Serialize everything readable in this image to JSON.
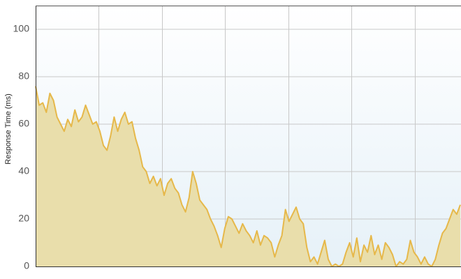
{
  "chart_data": {
    "type": "area",
    "y_label": "Response Time (ms)",
    "color": "#e6b84a",
    "fill": "#e9deab",
    "ylim": [
      0,
      110
    ],
    "yticks": [
      0,
      20,
      40,
      60,
      80,
      100
    ],
    "grid": true,
    "values": [
      76,
      68,
      69,
      65,
      73,
      70,
      63,
      60,
      57,
      62,
      59,
      66,
      61,
      63,
      68,
      64,
      60,
      61,
      57,
      51,
      49,
      55,
      63,
      57,
      62,
      65,
      60,
      61,
      54,
      49,
      42,
      40,
      35,
      38,
      34,
      37,
      30,
      35,
      37,
      33,
      31,
      26,
      23,
      29,
      40,
      35,
      28,
      26,
      24,
      20,
      17,
      13,
      8,
      16,
      21,
      20,
      17,
      14,
      18,
      15,
      13,
      10,
      15,
      9,
      13,
      12,
      10,
      4,
      9,
      13,
      24,
      19,
      22,
      25,
      20,
      18,
      8,
      2,
      4,
      1,
      6,
      11,
      3,
      0,
      1,
      0,
      1,
      6,
      10,
      4,
      12,
      2,
      9,
      6,
      13,
      5,
      9,
      3,
      10,
      8,
      5,
      0,
      2,
      1,
      3,
      11,
      6,
      4,
      1,
      4,
      1,
      0,
      3,
      9,
      14,
      16,
      20,
      24,
      22,
      26
    ]
  }
}
